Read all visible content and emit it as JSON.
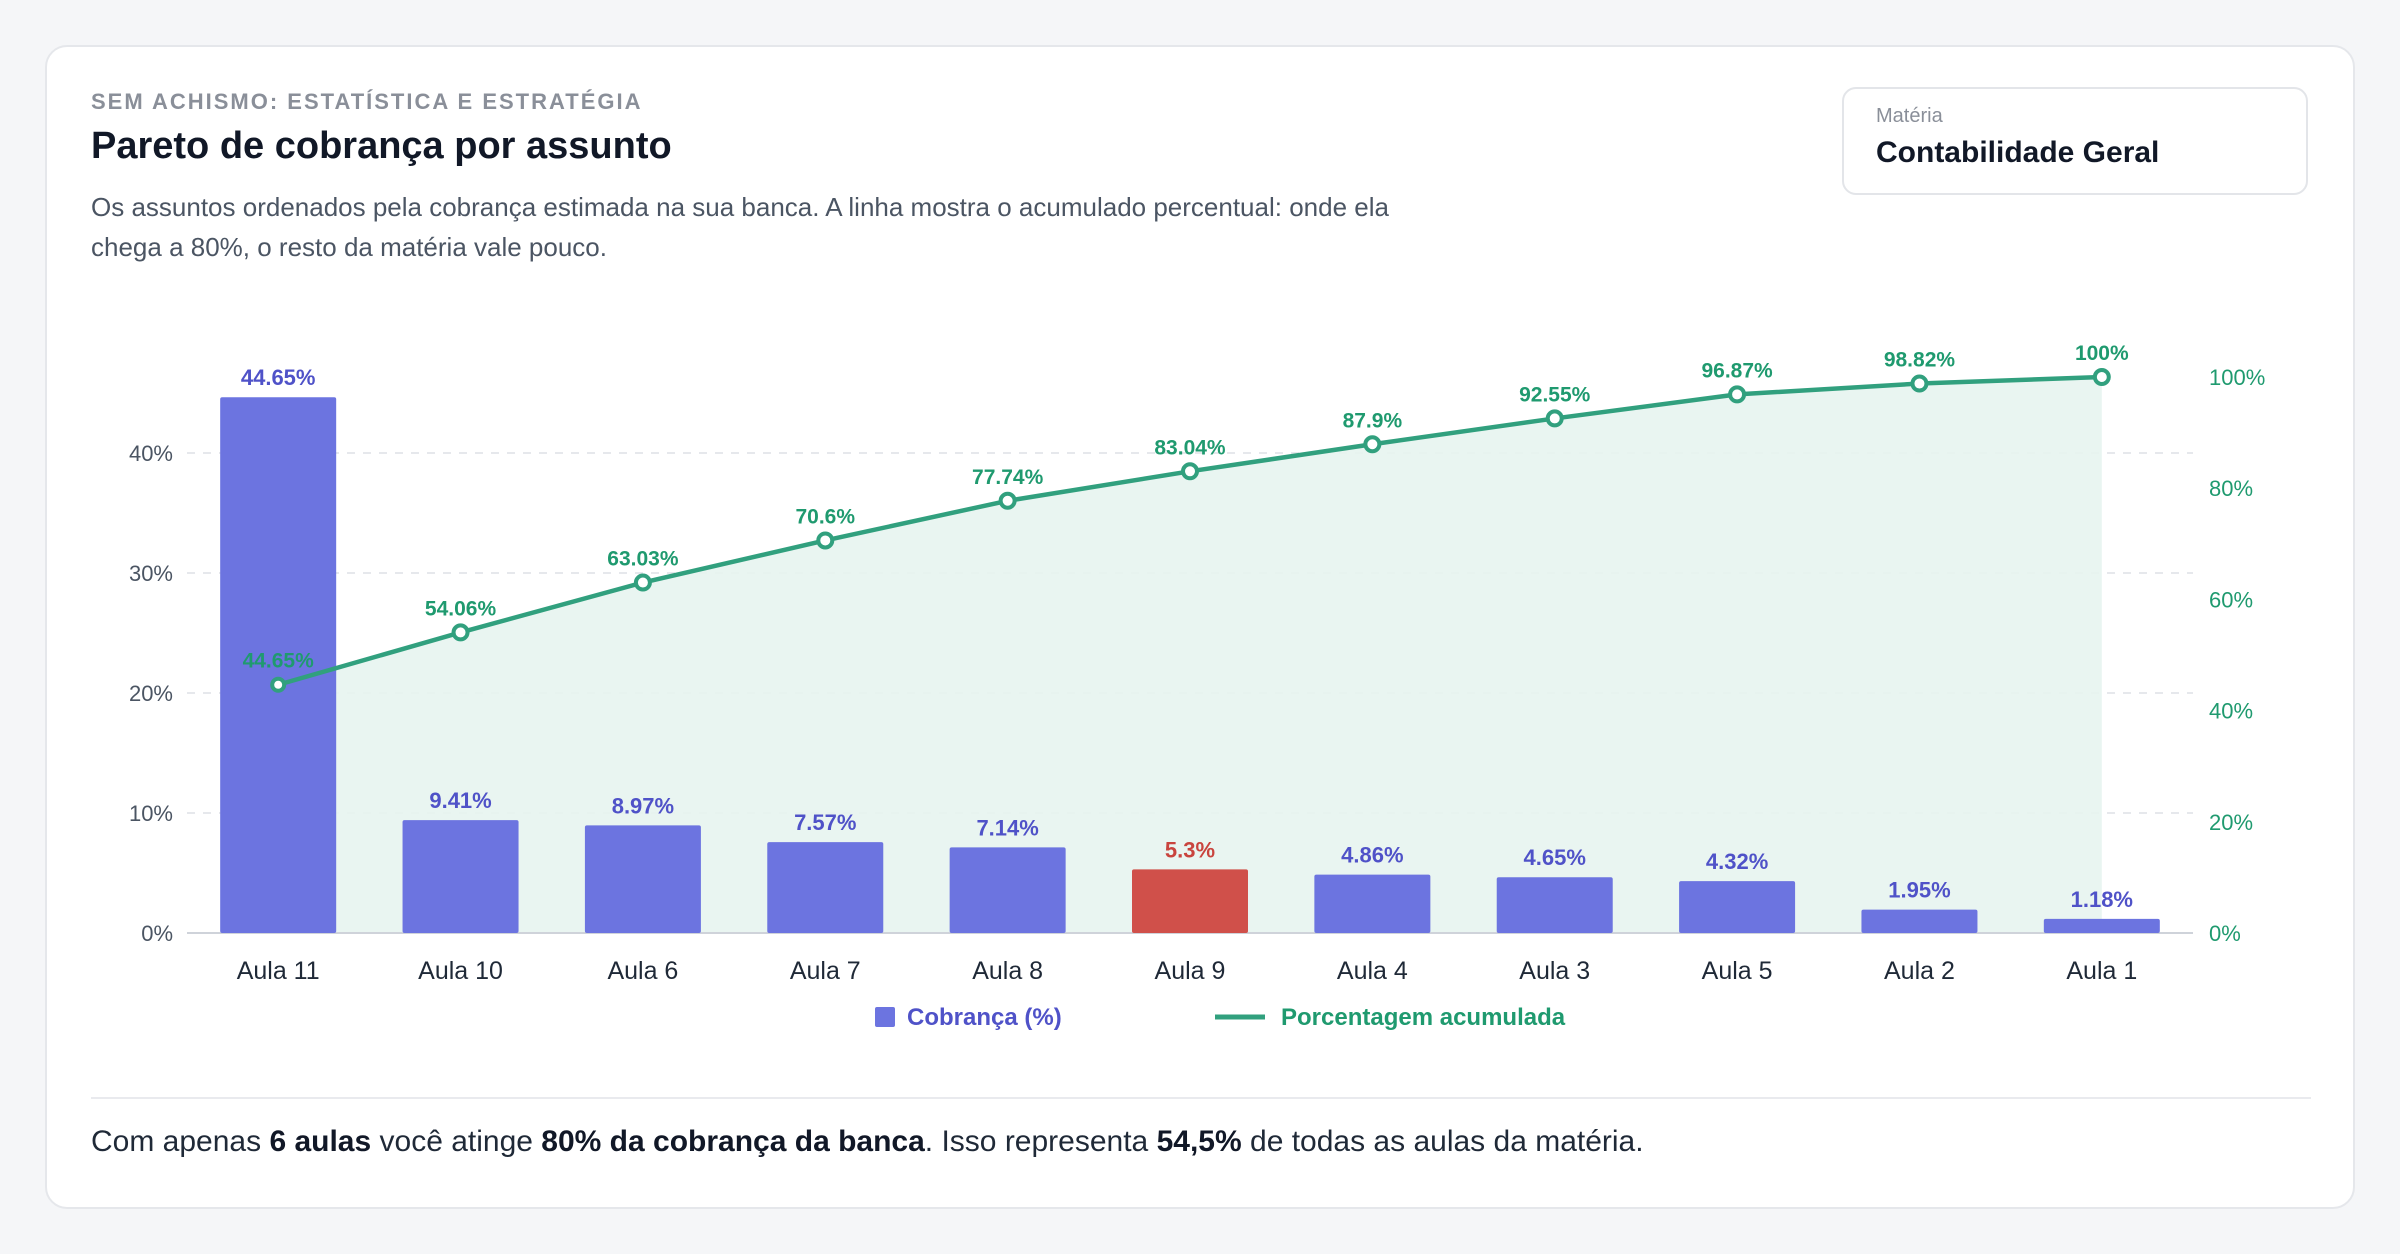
{
  "header": {
    "eyebrow": "SEM ACHISMO: ESTATÍSTICA E ESTRATÉGIA",
    "title": "Pareto de cobrança por assunto",
    "subtitle": "Os assuntos ordenados pela cobrança estimada na sua banca. A linha mostra o acumulado percentual: onde ela chega a 80%, o resto da matéria vale pouco."
  },
  "subject_selector": {
    "label": "Matéria",
    "value": "Contabilidade Geral"
  },
  "colors": {
    "bar": "#6c74e0",
    "bar_highlight": "#d0504a",
    "bar_label": "#4f52c8",
    "bar_label_highlight": "#c9443e",
    "line": "#31a07e",
    "line_label": "#1f9a6f",
    "area": "#e7f4ef"
  },
  "chart_data": {
    "type": "bar",
    "categories": [
      "Aula 11",
      "Aula 10",
      "Aula 6",
      "Aula 7",
      "Aula 8",
      "Aula 9",
      "Aula 4",
      "Aula 3",
      "Aula 5",
      "Aula 2",
      "Aula 1"
    ],
    "series": [
      {
        "name": "Cobrança (%)",
        "type": "bar",
        "axis": "left",
        "values": [
          44.65,
          9.41,
          8.97,
          7.57,
          7.14,
          5.3,
          4.86,
          4.65,
          4.32,
          1.95,
          1.18
        ],
        "labels": [
          "44.65%",
          "9.41%",
          "8.97%",
          "7.57%",
          "7.14%",
          "5.3%",
          "4.86%",
          "4.65%",
          "4.32%",
          "1.95%",
          "1.18%"
        ],
        "highlight_index": 5
      },
      {
        "name": "Porcentagem acumulada",
        "type": "line",
        "axis": "right",
        "values": [
          44.65,
          54.06,
          63.03,
          70.6,
          77.74,
          83.04,
          87.9,
          92.55,
          96.87,
          98.82,
          100
        ],
        "labels": [
          "44.65%",
          "54.06%",
          "63.03%",
          "70.6%",
          "77.74%",
          "83.04%",
          "87.9%",
          "92.55%",
          "96.87%",
          "98.82%",
          "100%"
        ]
      }
    ],
    "y_left": {
      "range": [
        0,
        48
      ],
      "ticks": [
        0,
        10,
        20,
        30,
        40
      ],
      "tick_labels": [
        "0%",
        "10%",
        "20%",
        "30%",
        "40%"
      ]
    },
    "y_right": {
      "range": [
        0,
        100
      ],
      "ticks": [
        0,
        20,
        40,
        60,
        80,
        100
      ],
      "tick_labels": [
        "0%",
        "20%",
        "40%",
        "60%",
        "80%",
        "100%"
      ]
    },
    "grid": true,
    "legend_position": "bottom-center"
  },
  "summary": {
    "part1": "Com apenas ",
    "bold1": "6 aulas",
    "part2": " você atinge ",
    "bold2": "80% da cobrança da banca",
    "part3": ". Isso representa ",
    "bold3": "54,5%",
    "part4": " de todas as aulas da matéria."
  }
}
